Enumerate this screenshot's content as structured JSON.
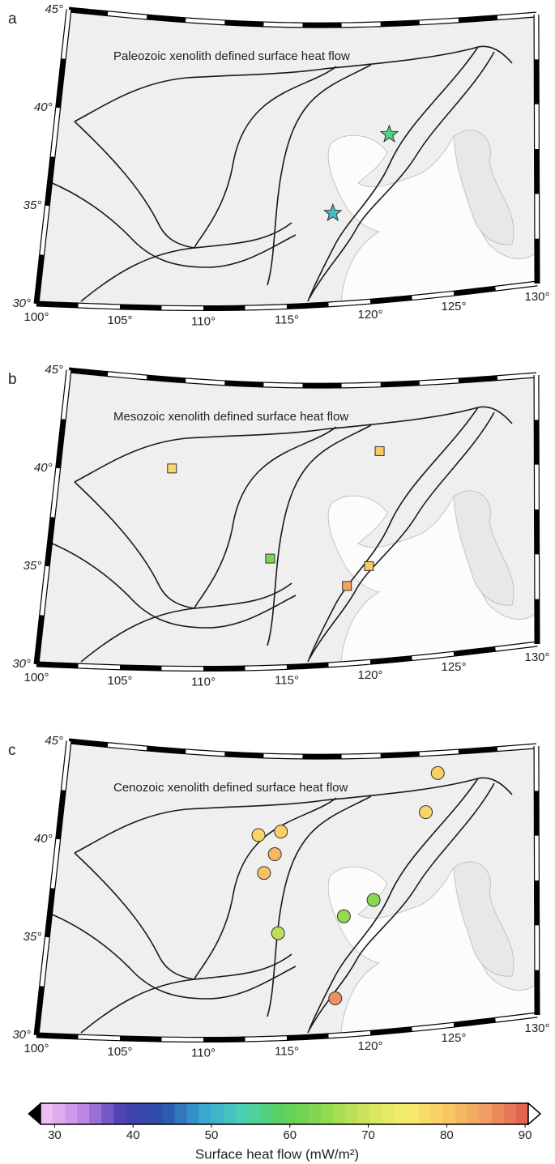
{
  "panels": [
    {
      "label": "a",
      "title": "Paleozoic xenolith defined surface heat flow",
      "marker": "star",
      "points": [
        {
          "lon": 120.8,
          "lat": 39.0,
          "value": 57
        },
        {
          "lon": 117.5,
          "lat": 34.9,
          "value": 52
        }
      ]
    },
    {
      "label": "b",
      "title": "Mesozoic xenolith defined surface heat flow",
      "marker": "square",
      "points": [
        {
          "lon": 107.1,
          "lat": 40.4,
          "value": 78
        },
        {
          "lon": 120.1,
          "lat": 41.4,
          "value": 80
        },
        {
          "lon": 113.6,
          "lat": 35.8,
          "value": 63
        },
        {
          "lon": 119.7,
          "lat": 35.2,
          "value": 80
        },
        {
          "lon": 118.4,
          "lat": 34.2,
          "value": 84
        }
      ]
    },
    {
      "label": "c",
      "title": "Cenozoic xenolith defined surface heat flow",
      "marker": "circle",
      "points": [
        {
          "lon": 112.5,
          "lat": 40.8,
          "value": 78
        },
        {
          "lon": 113.9,
          "lat": 41.0,
          "value": 79
        },
        {
          "lon": 113.6,
          "lat": 39.8,
          "value": 82
        },
        {
          "lon": 113.0,
          "lat": 38.8,
          "value": 81
        },
        {
          "lon": 114.1,
          "lat": 35.6,
          "value": 68
        },
        {
          "lon": 123.7,
          "lat": 43.9,
          "value": 79
        },
        {
          "lon": 123.0,
          "lat": 41.8,
          "value": 78
        },
        {
          "lon": 119.9,
          "lat": 37.2,
          "value": 64
        },
        {
          "lon": 118.1,
          "lat": 36.4,
          "value": 65
        },
        {
          "lon": 117.8,
          "lat": 32.0,
          "value": 86
        }
      ]
    }
  ],
  "graticule": {
    "lon_ticks": [
      {
        "value": 100,
        "label": "100°"
      },
      {
        "value": 105,
        "label": "105°"
      },
      {
        "value": 110,
        "label": "110°"
      },
      {
        "value": 115,
        "label": "115°"
      },
      {
        "value": 120,
        "label": "120°"
      },
      {
        "value": 125,
        "label": "125°"
      },
      {
        "value": 130,
        "label": "130°"
      }
    ],
    "lat_ticks": [
      {
        "value": 30,
        "label": "30°"
      },
      {
        "value": 35,
        "label": "35°"
      },
      {
        "value": 40,
        "label": "40°"
      },
      {
        "value": 45,
        "label": "45°"
      }
    ]
  },
  "colorbar": {
    "range": [
      28.2,
      90.4
    ],
    "ticks": [
      30,
      40,
      50,
      60,
      70,
      80,
      90
    ],
    "label": "Surface heat flow (mW/m²)",
    "colors": [
      "#f5c6f3",
      "#c48ae8",
      "#4a3fb0",
      "#2b4fa8",
      "#3aa6d2",
      "#4cd0b4",
      "#5ccf5a",
      "#8fd94e",
      "#d0e45c",
      "#f7ee6c",
      "#f8c862",
      "#f09a62",
      "#e05a4e"
    ]
  }
}
